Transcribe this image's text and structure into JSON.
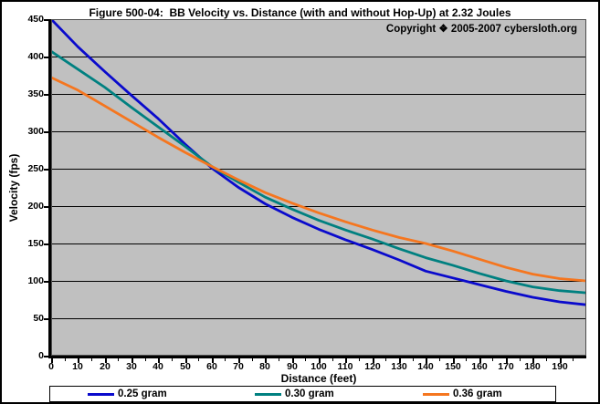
{
  "chart_data": {
    "type": "line",
    "title": "Figure 500-04:  BB Velocity vs. Distance (with and without Hop-Up) at 2.32 Joules",
    "annotation": "Copyright ❖ 2005-2007 cybersloth.org",
    "xlabel": "Distance (feet)",
    "ylabel": "Velocity (fps)",
    "xlim": [
      0,
      200
    ],
    "ylim": [
      0,
      450
    ],
    "x_ticks": [
      0,
      10,
      20,
      30,
      40,
      50,
      60,
      70,
      80,
      90,
      100,
      110,
      120,
      130,
      140,
      150,
      160,
      170,
      180,
      190
    ],
    "x_minor_tick_step": 5,
    "y_ticks": [
      0,
      50,
      100,
      150,
      200,
      250,
      300,
      350,
      400,
      450
    ],
    "grid": "horizontal",
    "grid_color": "#000000",
    "plot_bg_color": "#c0c0c0",
    "legend_position": "bottom",
    "x": [
      0,
      10,
      20,
      30,
      40,
      50,
      60,
      70,
      80,
      90,
      100,
      110,
      120,
      130,
      140,
      150,
      160,
      170,
      180,
      190,
      200
    ],
    "series": [
      {
        "name": "0.25 gram",
        "color": "#0a0acc",
        "values": [
          450,
          413,
          380,
          348,
          317,
          283,
          251,
          225,
          203,
          185,
          169,
          155,
          142,
          128,
          113,
          104,
          95,
          86,
          78,
          72,
          68
        ]
      },
      {
        "name": "0.30 gram",
        "color": "#008080",
        "values": [
          407,
          383,
          359,
          332,
          306,
          280,
          253,
          232,
          212,
          196,
          181,
          168,
          156,
          143,
          131,
          121,
          110,
          100,
          92,
          87,
          84
        ]
      },
      {
        "name": "0.36 gram",
        "color": "#f5761f",
        "values": [
          372,
          355,
          334,
          313,
          292,
          272,
          253,
          235,
          218,
          204,
          191,
          179,
          168,
          158,
          150,
          140,
          129,
          118,
          109,
          103,
          100
        ]
      }
    ]
  }
}
